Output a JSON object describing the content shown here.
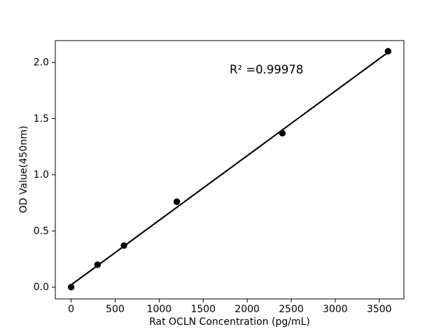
{
  "figure": {
    "background": "#ffffff"
  },
  "chart_data": {
    "type": "scatter",
    "title": "",
    "xlabel": "Rat OCLN Concentration (pg/mL)",
    "ylabel": "OD Value(450nm)",
    "points": {
      "x": [
        0,
        300,
        600,
        1200,
        2400,
        3600
      ],
      "y": [
        0.0,
        0.2,
        0.37,
        0.76,
        1.37,
        2.1
      ]
    },
    "fit_line": {
      "x": [
        0,
        3600
      ],
      "y": [
        0.02,
        2.09
      ]
    },
    "annotation": {
      "text": "R² =0.99978",
      "x": 1800,
      "y": 1.9
    },
    "xlim": [
      -180,
      3780
    ],
    "ylim": [
      -0.1045,
      2.1945
    ],
    "xticks": [
      0,
      500,
      1000,
      1500,
      2000,
      2500,
      3000,
      3500
    ],
    "xtick_labels": [
      "0",
      "500",
      "1000",
      "1500",
      "2000",
      "2500",
      "3000",
      "3500"
    ],
    "yticks": [
      0.0,
      0.5,
      1.0,
      1.5,
      2.0
    ],
    "ytick_labels": [
      "0.0",
      "0.5",
      "1.0",
      "1.5",
      "2.0"
    ],
    "grid": false,
    "legend": null,
    "marker": "circle",
    "colors": {
      "marker": "#000000",
      "line": "#000000",
      "axis": "#000000",
      "text": "#000000"
    }
  }
}
